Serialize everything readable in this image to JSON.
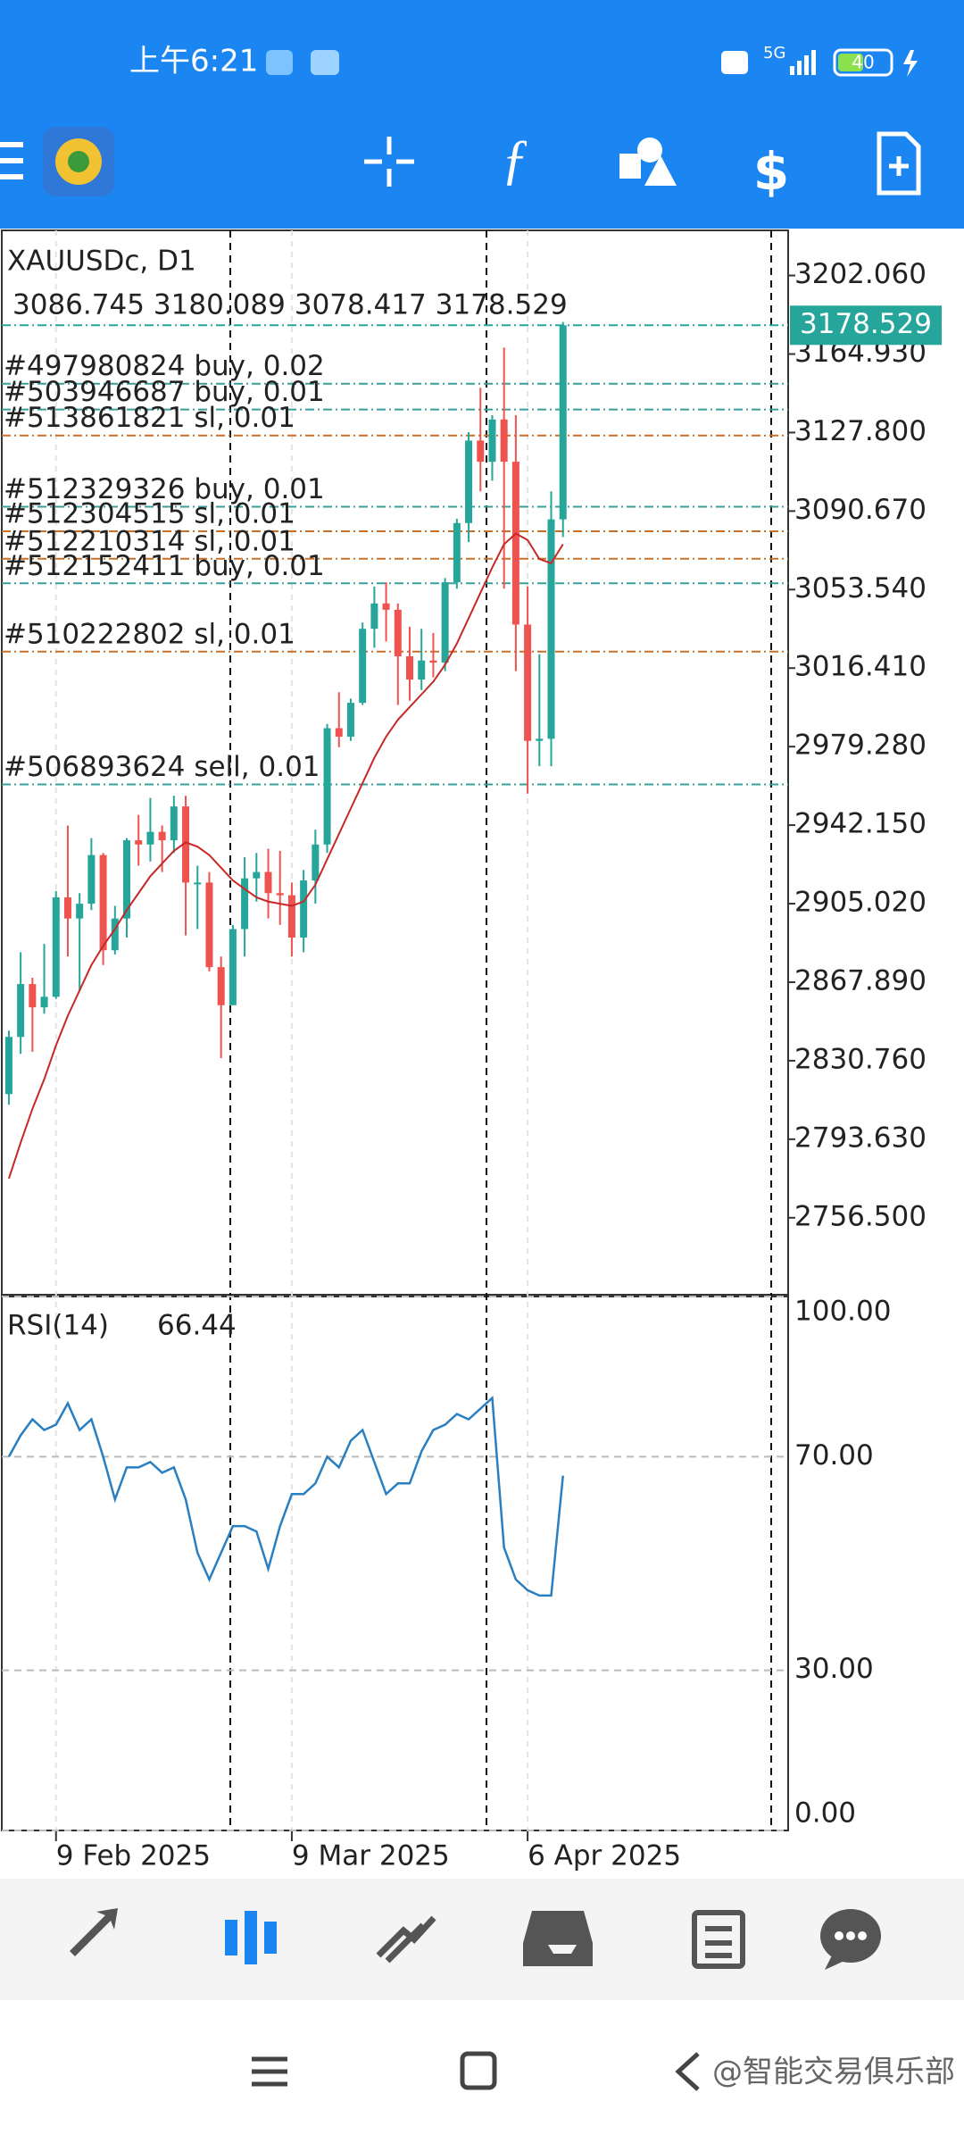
{
  "status_bar": {
    "time": "上午6:21",
    "network": "5G",
    "battery": "40"
  },
  "chart_data": [
    {
      "type": "candlestick",
      "title": "XAUUSDc, D1",
      "open": [
        2815,
        2842,
        2867,
        2856,
        2861,
        2908,
        2898,
        2905,
        2928,
        2883,
        2898,
        2935,
        2933,
        2939,
        2935,
        2951,
        2915,
        2915,
        2875,
        2857,
        2893,
        2917,
        2920,
        2910,
        2909,
        2889,
        2916,
        2933,
        2988,
        2984,
        3000,
        3035,
        3047,
        3044,
        3022,
        3011,
        3020,
        3019,
        3057,
        3085,
        3124,
        3114,
        3134,
        3114,
        3037,
        2982,
        2983,
        3086.745
      ],
      "high": [
        2845,
        2882,
        2870,
        2886,
        2911,
        2942,
        2910,
        2936,
        2929,
        2904,
        2936,
        2947,
        2955,
        2942,
        2956,
        2956,
        2923,
        2920,
        2880,
        2895,
        2927,
        2929,
        2931,
        2930,
        2915,
        2921,
        2940,
        2990,
        3005,
        3002,
        3038,
        3055,
        3057,
        3047,
        3036,
        3035,
        3033,
        3059,
        3087,
        3128,
        3149,
        3136,
        3168,
        3136,
        3055,
        3023,
        3100,
        3180.089
      ],
      "low": [
        2810,
        2834,
        2835,
        2853,
        2860,
        2880,
        2864,
        2902,
        2876,
        2881,
        2889,
        2923,
        2925,
        2920,
        2929,
        2890,
        2893,
        2873,
        2832,
        2857,
        2880,
        2906,
        2898,
        2895,
        2880,
        2882,
        2905,
        2929,
        2979,
        2982,
        2999,
        3026,
        3029,
        2999,
        3001,
        3006,
        3012,
        3015,
        3054,
        3076,
        3100,
        3105,
        3054,
        3015,
        2957,
        2970,
        2970,
        3078.417
      ],
      "close": [
        2842,
        2867,
        2856,
        2861,
        2908,
        2898,
        2905,
        2928,
        2883,
        2898,
        2935,
        2933,
        2939,
        2935,
        2951,
        2915,
        2915,
        2875,
        2857,
        2893,
        2917,
        2920,
        2910,
        2909,
        2889,
        2916,
        2933,
        2988,
        2984,
        3000,
        3035,
        3047,
        3044,
        3022,
        3011,
        3020,
        3019,
        3057,
        3085,
        3124,
        3114,
        3134,
        3114,
        3037,
        2982,
        2983,
        3086.745,
        3178.529
      ],
      "up_color": "#26a69a",
      "down_color": "#ef5350",
      "moving_average": {
        "color": "#c62828",
        "values": [
          2775,
          2792,
          2808,
          2822,
          2838,
          2852,
          2864,
          2876,
          2885,
          2893,
          2902,
          2910,
          2918,
          2924,
          2930,
          2934,
          2932,
          2928,
          2922,
          2916,
          2912,
          2908,
          2906,
          2905,
          2904,
          2906,
          2914,
          2926,
          2938,
          2950,
          2962,
          2974,
          2984,
          2992,
          2998,
          3004,
          3010,
          3018,
          3028,
          3040,
          3052,
          3064,
          3075,
          3080,
          3077,
          3068,
          3066,
          3075
        ]
      },
      "orders": [
        {
          "label": "#497980824 buy, 0.02",
          "price": 3150.9,
          "color": "#3a9e9a"
        },
        {
          "label": "#503946687 buy, 0.01",
          "price": 3138.7,
          "color": "#3a9e9a"
        },
        {
          "label": "#513861821 sl, 0.01",
          "price": 3126.4,
          "color": "#c8702a"
        },
        {
          "label": "#512329326 buy, 0.01",
          "price": 3092.7,
          "color": "#3a9e9a"
        },
        {
          "label": "#512304515 sl, 0.01",
          "price": 3081.1,
          "color": "#c8702a"
        },
        {
          "label": "#512210314 sl, 0.01",
          "price": 3068.1,
          "color": "#c8702a"
        },
        {
          "label": "#512152411 buy, 0.01",
          "price": 3056.5,
          "color": "#3a9e9a"
        },
        {
          "label": "#510222802 sl, 0.01",
          "price": 3024.2,
          "color": "#c8702a"
        },
        {
          "label": "#506893624 sell, 0.01",
          "price": 2961.4,
          "color": "#3a9e9a"
        }
      ],
      "xlim": [
        -0.6,
        66.1
      ],
      "xticks": [
        {
          "value": 4,
          "label": "9 Feb 2025"
        },
        {
          "value": 24,
          "label": "9 Mar 2025"
        },
        {
          "value": 44,
          "label": "6 Apr 2025"
        }
      ],
      "ylim": [
        2720.1,
        3223.4
      ],
      "yticks": [
        {
          "value": 3202.06,
          "label": "3202.060"
        },
        {
          "value": 3164.93,
          "label": "3164.930"
        },
        {
          "value": 3127.8,
          "label": "3127.800"
        },
        {
          "value": 3090.67,
          "label": "3090.670"
        },
        {
          "value": 3053.54,
          "label": "3053.540"
        },
        {
          "value": 3016.41,
          "label": "3016.410"
        },
        {
          "value": 2979.28,
          "label": "2979.280"
        },
        {
          "value": 2942.15,
          "label": "2942.150"
        },
        {
          "value": 2905.02,
          "label": "2905.020"
        },
        {
          "value": 2867.89,
          "label": "2867.890"
        },
        {
          "value": 2830.76,
          "label": "2830.760"
        },
        {
          "value": 2793.63,
          "label": "2793.630"
        },
        {
          "value": 2756.5,
          "label": "2756.500"
        }
      ]
    },
    {
      "type": "line",
      "title": "RSI(14)",
      "color": "#2a7fc0",
      "values": [
        70,
        74,
        77,
        75,
        76,
        80,
        75,
        77,
        70,
        62,
        68,
        68,
        69,
        67,
        68,
        62,
        52,
        47,
        52,
        57,
        57,
        56,
        49,
        57,
        63,
        63,
        65,
        70,
        68,
        73,
        75,
        69,
        63,
        65,
        65,
        71,
        75,
        76,
        78,
        77,
        79,
        81,
        53,
        47,
        45,
        44,
        44,
        66.44
      ],
      "ylim": [
        0,
        100
      ],
      "yticks": [
        {
          "value": 100,
          "label": "100.00"
        },
        {
          "value": 70,
          "label": "70.00"
        },
        {
          "value": 30,
          "label": "30.00"
        },
        {
          "value": 0,
          "label": "0.00"
        }
      ]
    }
  ],
  "watermark": "@智能交易俱乐部"
}
